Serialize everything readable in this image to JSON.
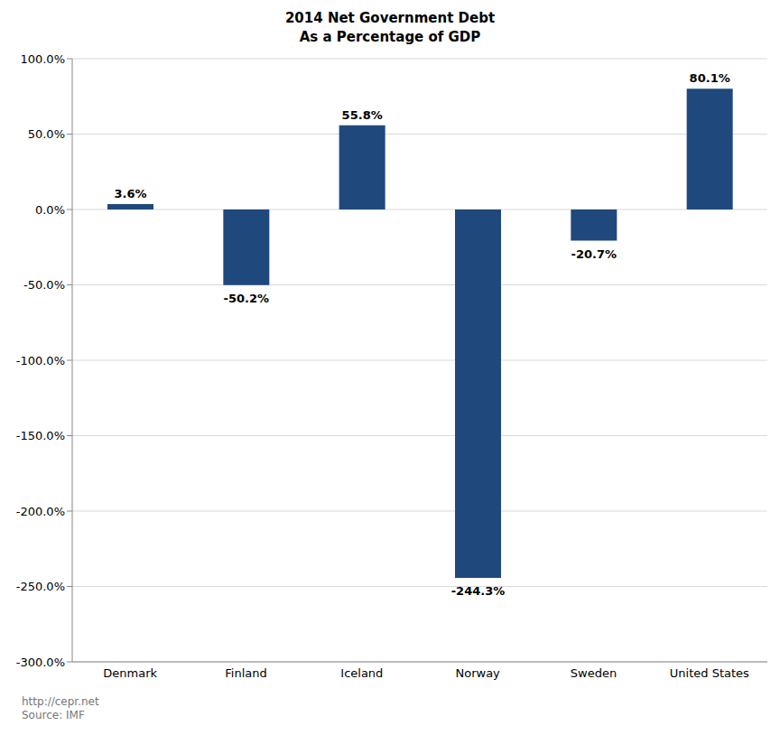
{
  "chart_data": {
    "type": "bar",
    "title": "2014 Net Government Debt",
    "subtitle": "As a Percentage of GDP",
    "categories": [
      "Denmark",
      "Finland",
      "Iceland",
      "Norway",
      "Sweden",
      "United States"
    ],
    "values": [
      3.6,
      -50.2,
      55.8,
      -244.3,
      -20.7,
      80.1
    ],
    "value_labels": [
      "3.6%",
      "-50.2%",
      "55.8%",
      "-244.3%",
      "-20.7%",
      "80.1%"
    ],
    "color": "#1f497d",
    "ylim": [
      -300,
      100
    ],
    "yticks": [
      {
        "value": -300,
        "label": "-300.0%"
      },
      {
        "value": -250,
        "label": "-250.0%"
      },
      {
        "value": -200,
        "label": "-200.0%"
      },
      {
        "value": -150,
        "label": "-150.0%"
      },
      {
        "value": -100,
        "label": "-100.0%"
      },
      {
        "value": -50,
        "label": "-50.0%"
      },
      {
        "value": 0,
        "label": "0.0%"
      },
      {
        "value": 50,
        "label": "50.0%"
      },
      {
        "value": 100,
        "label": "100.0%"
      }
    ],
    "grid": true,
    "data_labels": true,
    "annotations": [
      "http://cepr.net",
      "Source: IMF"
    ]
  }
}
